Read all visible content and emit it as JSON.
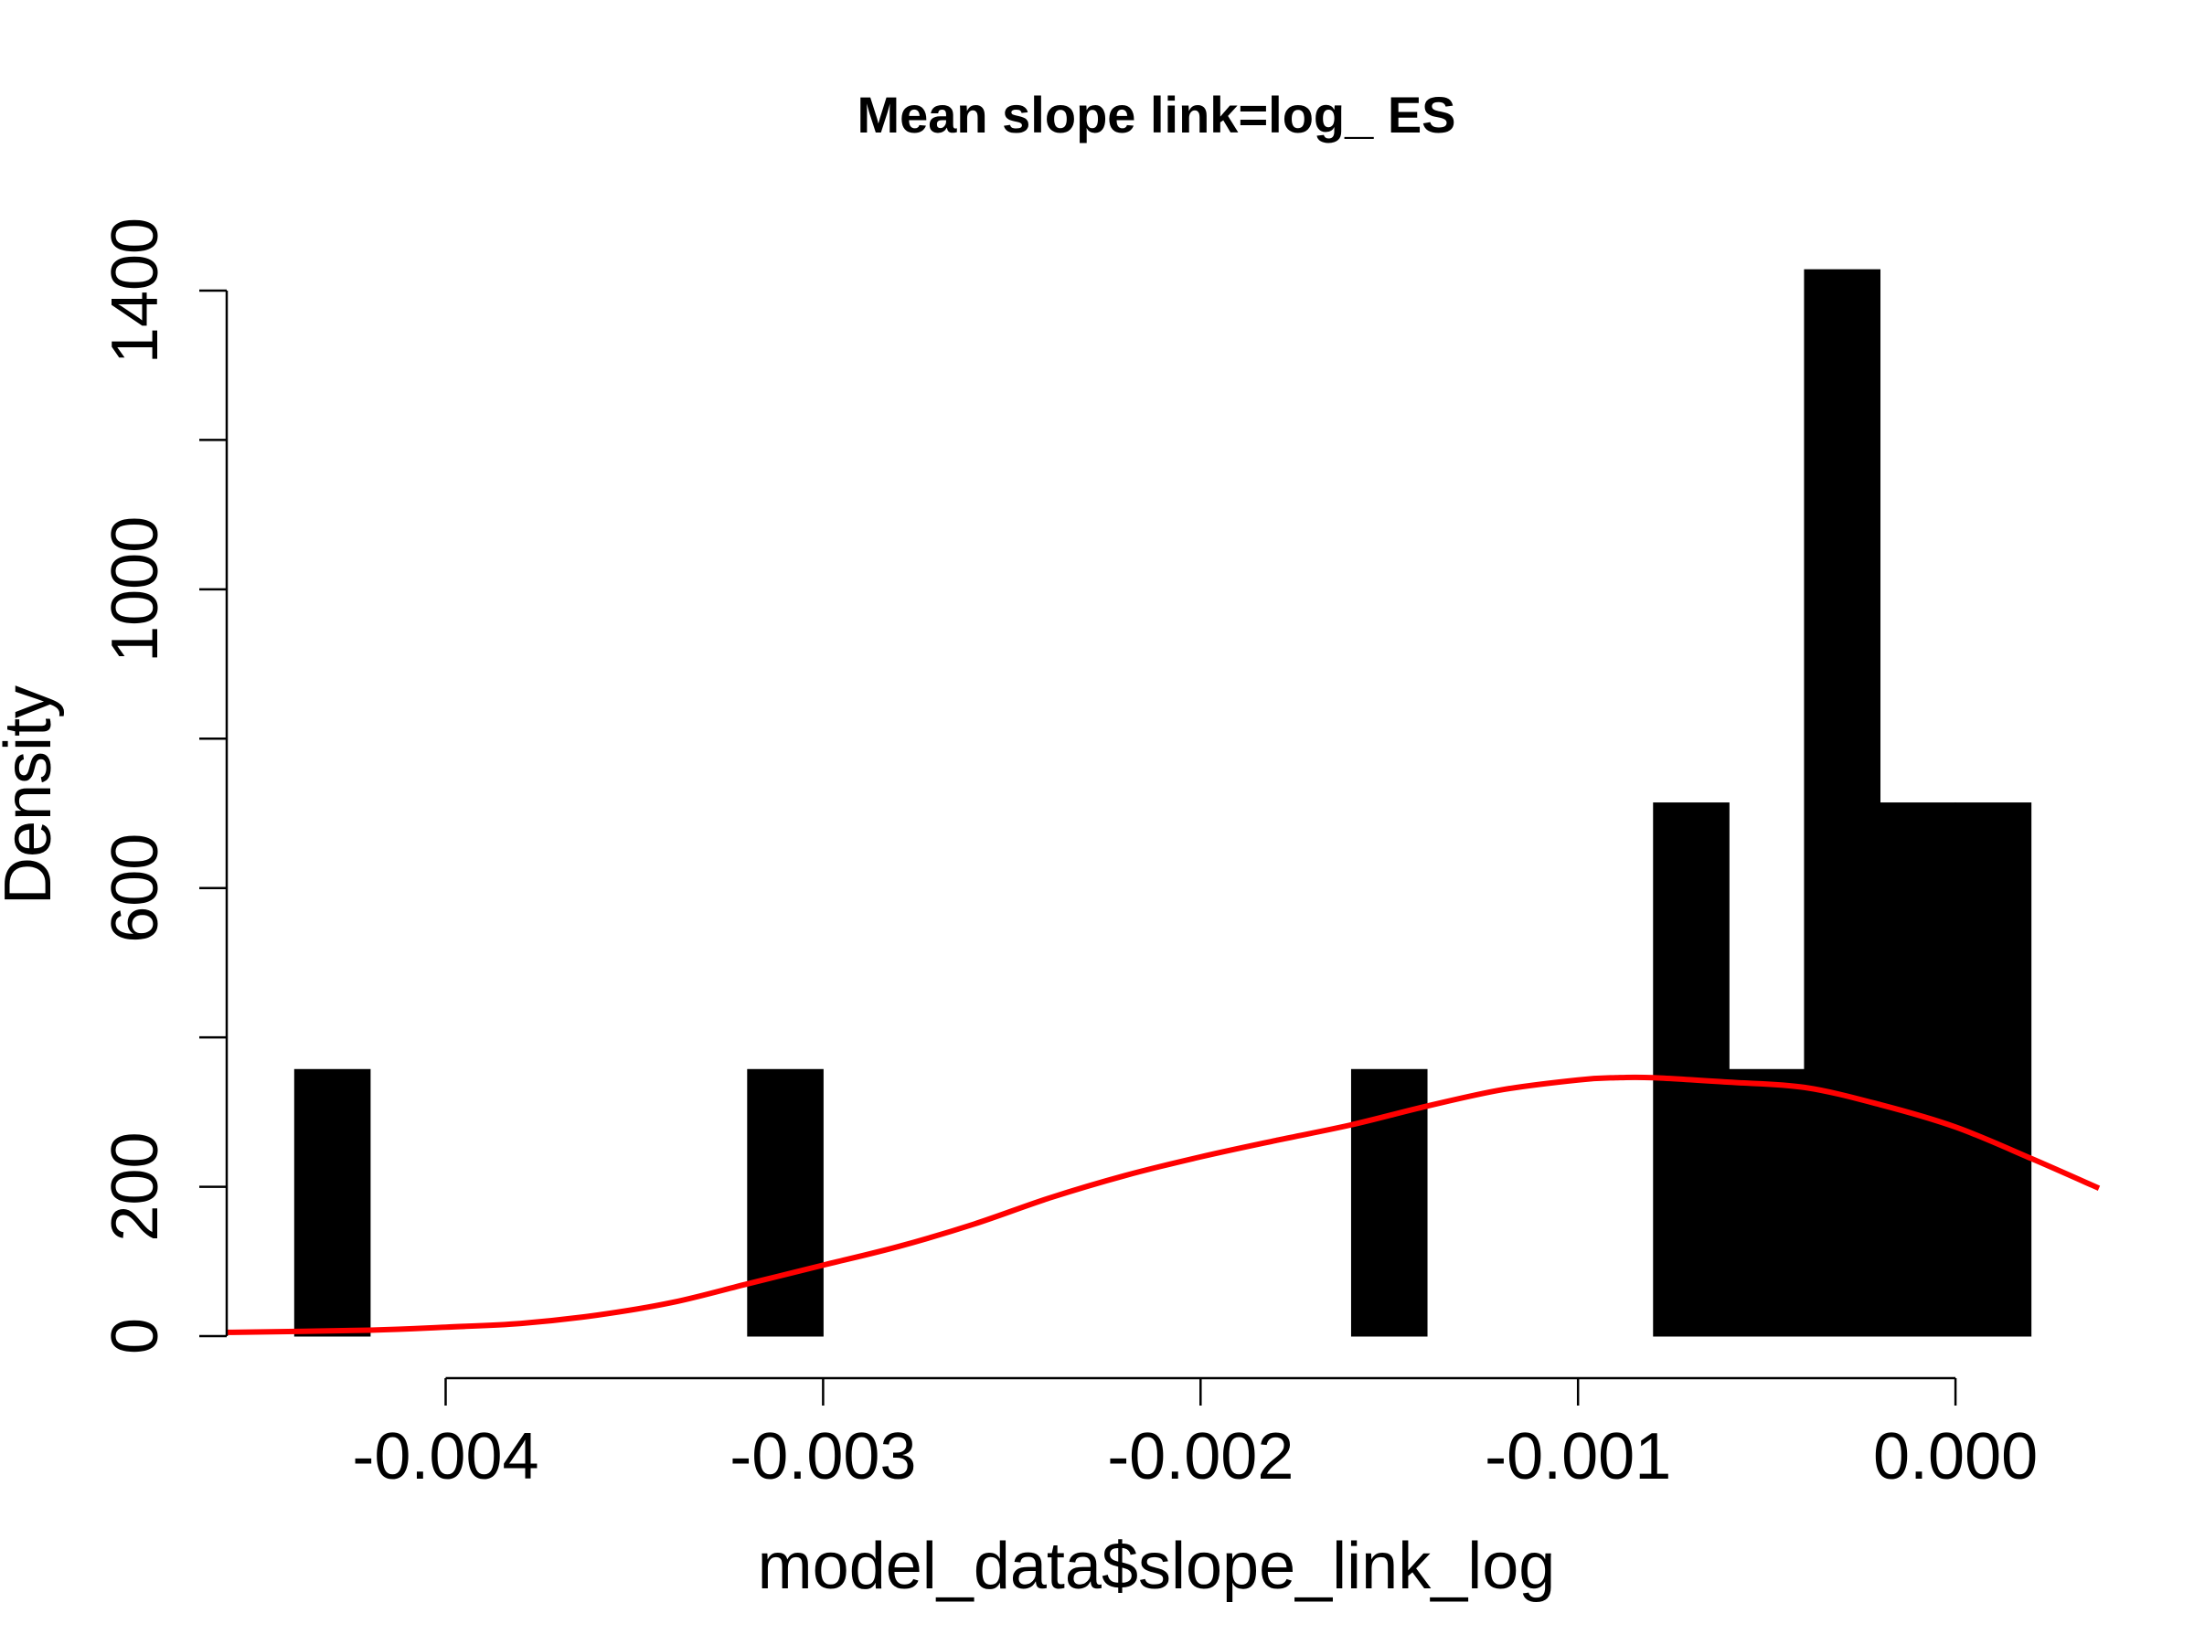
{
  "chart_data": {
    "type": "histogram",
    "title": "Mean slope link=log_ ES",
    "xlabel": "model_data$slope_link_log",
    "ylabel": "Density",
    "xlim": [
      -0.00458,
      0.00038
    ],
    "ylim": [
      0,
      1400
    ],
    "x_ticks": [
      -0.004,
      -0.003,
      -0.002,
      -0.001,
      0.0
    ],
    "x_tick_labels": [
      "-0.004",
      "-0.003",
      "-0.002",
      "-0.001",
      "0.000"
    ],
    "y_ticks": [
      0,
      200,
      400,
      600,
      800,
      1000,
      1200,
      1400
    ],
    "y_tick_labels": [
      "0",
      "200",
      "",
      "600",
      "",
      "1000",
      "",
      "1400"
    ],
    "bins": [
      {
        "x0": -0.0044,
        "x1": -0.0042,
        "density": 357
      },
      {
        "x0": -0.0032,
        "x1": -0.003,
        "density": 357
      },
      {
        "x0": -0.0016,
        "x1": -0.0014,
        "density": 357
      },
      {
        "x0": -0.0008,
        "x1": -0.0006,
        "density": 714
      },
      {
        "x0": -0.0006,
        "x1": -0.0004,
        "density": 357
      },
      {
        "x0": -0.0004,
        "x1": -0.0002,
        "density": 1428
      },
      {
        "x0": -0.0002,
        "x1": 0.0,
        "density": 714
      },
      {
        "x0": 0.0,
        "x1": 0.0002,
        "density": 714
      }
    ],
    "bar_color": "#000000",
    "density_curve": {
      "color": "#ff0000",
      "points": [
        [
          -0.00458,
          5
        ],
        [
          -0.0042,
          8
        ],
        [
          -0.004,
          12
        ],
        [
          -0.0038,
          17
        ],
        [
          -0.0036,
          28
        ],
        [
          -0.0034,
          45
        ],
        [
          -0.0032,
          70
        ],
        [
          -0.003,
          95
        ],
        [
          -0.0028,
          120
        ],
        [
          -0.0026,
          150
        ],
        [
          -0.0024,
          185
        ],
        [
          -0.0022,
          215
        ],
        [
          -0.002,
          240
        ],
        [
          -0.0018,
          262
        ],
        [
          -0.0016,
          283
        ],
        [
          -0.0014,
          308
        ],
        [
          -0.0012,
          330
        ],
        [
          -0.001,
          343
        ],
        [
          -0.0009,
          346
        ],
        [
          -0.0008,
          346
        ],
        [
          -0.0006,
          340
        ],
        [
          -0.0004,
          333
        ],
        [
          -0.0002,
          310
        ],
        [
          0.0,
          280
        ],
        [
          0.0002,
          238
        ],
        [
          0.00038,
          198
        ]
      ]
    }
  }
}
